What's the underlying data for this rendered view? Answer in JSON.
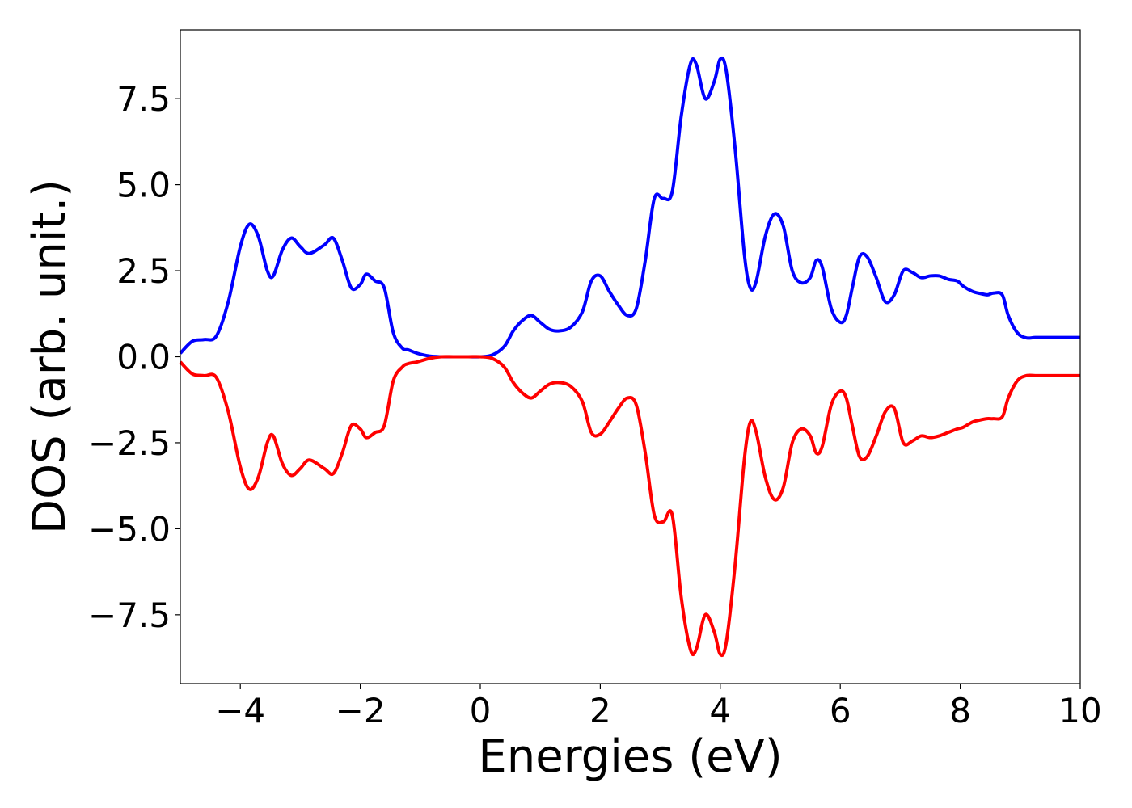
{
  "chart_data": {
    "type": "line",
    "title": "",
    "xlabel": "Energies (eV)",
    "ylabel": "DOS (arb. unit.)",
    "xlim": [
      -5,
      10
    ],
    "ylim": [
      -9.5,
      9.5
    ],
    "grid": false,
    "legend": "none",
    "x_ticks": [
      -4,
      -2,
      0,
      2,
      4,
      6,
      8,
      10
    ],
    "x_tick_labels": [
      "−4",
      "−2",
      "0",
      "2",
      "4",
      "6",
      "8",
      "10"
    ],
    "y_ticks": [
      7.5,
      5.0,
      2.5,
      0.0,
      -2.5,
      -5.0,
      -7.5
    ],
    "y_tick_labels": [
      "7.5",
      "5.0",
      "2.5",
      "0.0",
      "−2.5",
      "−5.0",
      "−7.5"
    ],
    "series": [
      {
        "color": "#0000ff",
        "x": [
          -5.0,
          -4.8,
          -4.6,
          -4.4,
          -4.2,
          -4.0,
          -3.85,
          -3.7,
          -3.55,
          -3.45,
          -3.3,
          -3.15,
          -3.0,
          -2.85,
          -2.6,
          -2.45,
          -2.3,
          -2.15,
          -2.0,
          -1.9,
          -1.75,
          -1.6,
          -1.45,
          -1.3,
          -1.2,
          -1.05,
          -0.85,
          -0.65,
          -0.45,
          -0.2,
          0.0,
          0.2,
          0.4,
          0.55,
          0.7,
          0.85,
          1.0,
          1.15,
          1.3,
          1.5,
          1.7,
          1.85,
          2.0,
          2.15,
          2.3,
          2.45,
          2.6,
          2.75,
          2.9,
          3.05,
          3.2,
          3.35,
          3.5,
          3.6,
          3.75,
          3.9,
          4.0,
          4.1,
          4.25,
          4.4,
          4.5,
          4.6,
          4.75,
          4.9,
          5.05,
          5.2,
          5.35,
          5.5,
          5.6,
          5.7,
          5.85,
          6.0,
          6.1,
          6.2,
          6.32,
          6.45,
          6.6,
          6.75,
          6.9,
          7.05,
          7.2,
          7.35,
          7.5,
          7.65,
          7.8,
          7.95,
          8.05,
          8.2,
          8.3,
          8.45,
          8.55,
          8.7,
          8.8,
          8.95,
          9.1,
          9.25,
          9.45,
          9.6,
          9.75,
          9.9,
          10.0
        ],
        "values": [
          0.1,
          0.45,
          0.5,
          0.6,
          1.6,
          3.2,
          3.85,
          3.5,
          2.5,
          2.35,
          3.1,
          3.45,
          3.2,
          3.0,
          3.25,
          3.45,
          2.8,
          2.0,
          2.1,
          2.4,
          2.2,
          2.0,
          0.7,
          0.25,
          0.2,
          0.1,
          0.02,
          0.0,
          0.0,
          0.0,
          0.0,
          0.05,
          0.3,
          0.75,
          1.05,
          1.2,
          1.0,
          0.8,
          0.75,
          0.85,
          1.3,
          2.2,
          2.35,
          1.9,
          1.5,
          1.2,
          1.4,
          2.8,
          4.6,
          4.6,
          4.8,
          7.0,
          8.5,
          8.5,
          7.5,
          8.0,
          8.65,
          8.3,
          6.0,
          3.0,
          2.0,
          2.2,
          3.5,
          4.15,
          3.8,
          2.5,
          2.15,
          2.3,
          2.8,
          2.6,
          1.4,
          1.0,
          1.2,
          2.0,
          2.9,
          2.9,
          2.3,
          1.6,
          1.8,
          2.5,
          2.45,
          2.3,
          2.35,
          2.35,
          2.25,
          2.2,
          2.05,
          1.9,
          1.85,
          1.8,
          1.85,
          1.8,
          1.2,
          0.7,
          0.55,
          0.56,
          0.56,
          0.56,
          0.56,
          0.56,
          0.56
        ]
      },
      {
        "color": "#ff0000",
        "x": [
          -5.0,
          -4.8,
          -4.6,
          -4.4,
          -4.2,
          -4.0,
          -3.85,
          -3.7,
          -3.55,
          -3.45,
          -3.3,
          -3.15,
          -3.0,
          -2.85,
          -2.6,
          -2.45,
          -2.3,
          -2.15,
          -2.0,
          -1.9,
          -1.75,
          -1.6,
          -1.45,
          -1.3,
          -1.2,
          -1.05,
          -0.85,
          -0.65,
          -0.45,
          -0.2,
          0.0,
          0.2,
          0.4,
          0.55,
          0.7,
          0.85,
          1.0,
          1.15,
          1.3,
          1.5,
          1.7,
          1.85,
          2.0,
          2.15,
          2.3,
          2.45,
          2.6,
          2.75,
          2.9,
          3.05,
          3.2,
          3.35,
          3.5,
          3.6,
          3.75,
          3.9,
          4.0,
          4.1,
          4.25,
          4.4,
          4.5,
          4.6,
          4.75,
          4.9,
          5.05,
          5.2,
          5.35,
          5.5,
          5.6,
          5.7,
          5.85,
          6.0,
          6.1,
          6.2,
          6.32,
          6.45,
          6.6,
          6.75,
          6.9,
          7.05,
          7.2,
          7.35,
          7.5,
          7.65,
          7.8,
          7.95,
          8.05,
          8.2,
          8.3,
          8.45,
          8.55,
          8.7,
          8.8,
          8.95,
          9.1,
          9.25,
          9.45,
          9.6,
          9.75,
          9.9,
          10.0
        ],
        "values": [
          -0.15,
          -0.5,
          -0.55,
          -0.6,
          -1.6,
          -3.2,
          -3.85,
          -3.5,
          -2.5,
          -2.3,
          -3.1,
          -3.45,
          -3.25,
          -3.0,
          -3.25,
          -3.4,
          -2.8,
          -2.0,
          -2.1,
          -2.35,
          -2.2,
          -2.0,
          -0.7,
          -0.3,
          -0.2,
          -0.15,
          -0.05,
          0.0,
          0.0,
          0.0,
          0.0,
          -0.05,
          -0.3,
          -0.75,
          -1.05,
          -1.2,
          -1.0,
          -0.8,
          -0.75,
          -0.85,
          -1.3,
          -2.2,
          -2.25,
          -1.9,
          -1.5,
          -1.2,
          -1.4,
          -2.8,
          -4.6,
          -4.8,
          -4.6,
          -7.0,
          -8.5,
          -8.5,
          -7.5,
          -8.0,
          -8.65,
          -8.3,
          -6.0,
          -3.0,
          -1.9,
          -2.2,
          -3.5,
          -4.15,
          -3.8,
          -2.5,
          -2.1,
          -2.3,
          -2.8,
          -2.6,
          -1.4,
          -1.0,
          -1.2,
          -2.0,
          -2.9,
          -2.9,
          -2.3,
          -1.6,
          -1.5,
          -2.5,
          -2.45,
          -2.3,
          -2.35,
          -2.3,
          -2.2,
          -2.1,
          -2.05,
          -1.9,
          -1.85,
          -1.8,
          -1.8,
          -1.75,
          -1.2,
          -0.7,
          -0.55,
          -0.55,
          -0.55,
          -0.55,
          -0.55,
          -0.55,
          -0.55
        ]
      }
    ]
  }
}
